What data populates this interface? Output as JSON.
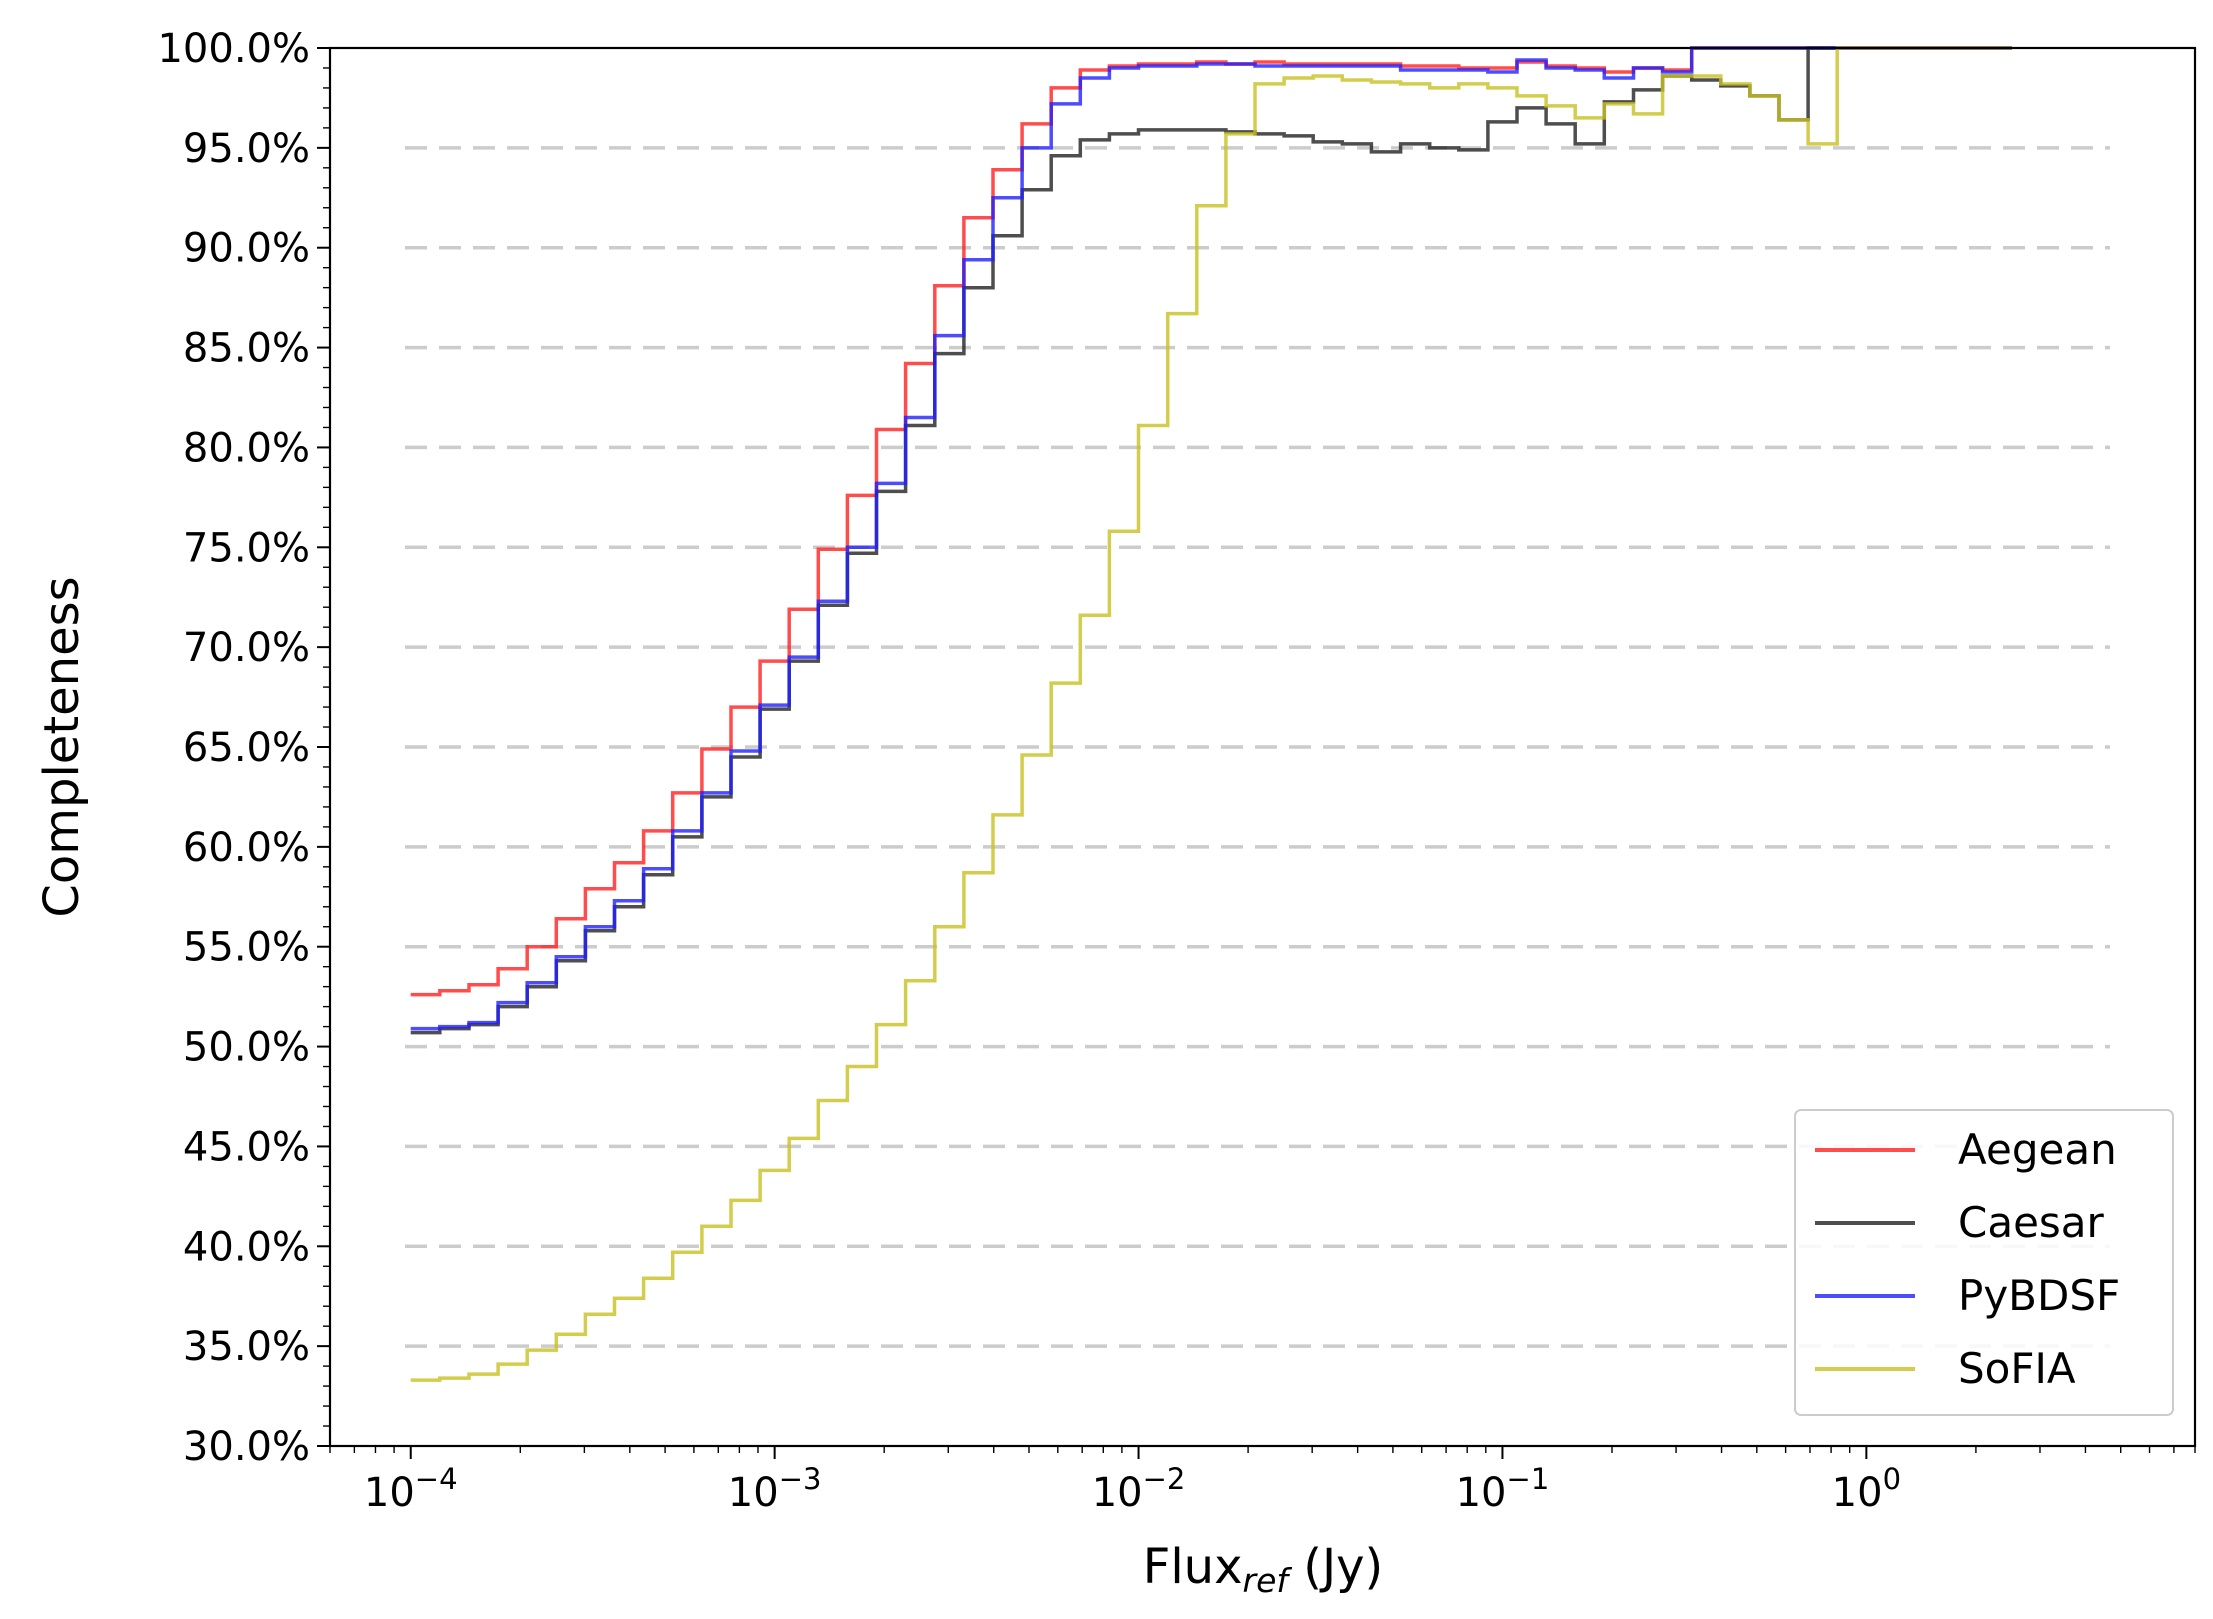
{
  "chart_data": {
    "type": "line",
    "ylabel": "Completeness",
    "xlabel": {
      "main": "Flux",
      "subscript": "ref",
      "unit": " (Jy)"
    },
    "x_scale": "log",
    "xlim": [
      6e-05,
      8.0
    ],
    "ylim": [
      30.0,
      100.0
    ],
    "grid": {
      "axis": "y",
      "style": "dashed"
    },
    "legend_position": "lower-right",
    "y_ticks": [
      "30.0%",
      "35.0%",
      "40.0%",
      "45.0%",
      "50.0%",
      "55.0%",
      "60.0%",
      "65.0%",
      "70.0%",
      "75.0%",
      "80.0%",
      "85.0%",
      "90.0%",
      "95.0%",
      "100.0%"
    ],
    "y_tick_values": [
      30,
      35,
      40,
      45,
      50,
      55,
      60,
      65,
      70,
      75,
      80,
      85,
      90,
      95,
      100
    ],
    "x_ticks": [
      {
        "value": 0.0001,
        "base": "10",
        "exp": "−4"
      },
      {
        "value": 0.001,
        "base": "10",
        "exp": "−3"
      },
      {
        "value": 0.01,
        "base": "10",
        "exp": "−2"
      },
      {
        "value": 0.1,
        "base": "10",
        "exp": "−1"
      },
      {
        "value": 1,
        "base": "10",
        "exp": "0"
      }
    ],
    "bin_edges_log10": [
      -4.0,
      -3.92,
      -3.84,
      -3.76,
      -3.68,
      -3.6,
      -3.52,
      -3.44,
      -3.36,
      -3.28,
      -3.2,
      -3.12,
      -3.04,
      -2.96,
      -2.88,
      -2.8,
      -2.72,
      -2.64,
      -2.56,
      -2.48,
      -2.4,
      -2.32,
      -2.24,
      -2.16,
      -2.08,
      -2.0,
      -1.92,
      -1.84,
      -1.76,
      -1.68,
      -1.6,
      -1.52,
      -1.44,
      -1.36,
      -1.28,
      -1.2,
      -1.12,
      -1.04,
      -0.96,
      -0.88,
      -0.8,
      -0.72,
      -0.64,
      -0.56,
      -0.48,
      -0.4,
      -0.32,
      -0.24,
      -0.16,
      -0.08,
      0.0,
      0.08,
      0.16,
      0.24,
      0.32,
      0.4
    ],
    "series": [
      {
        "name": "Aegean",
        "color": "#ff2020",
        "values": [
          52.6,
          52.8,
          53.1,
          53.9,
          55.0,
          56.4,
          57.9,
          59.2,
          60.8,
          62.7,
          64.9,
          67.0,
          69.3,
          71.9,
          74.9,
          77.6,
          80.9,
          84.2,
          88.1,
          91.5,
          93.9,
          96.2,
          98.0,
          98.9,
          99.1,
          99.2,
          99.2,
          99.3,
          99.2,
          99.3,
          99.2,
          99.2,
          99.2,
          99.2,
          99.1,
          99.1,
          99.0,
          99.0,
          99.3,
          99.1,
          99.0,
          98.8,
          99.0,
          98.9,
          100.0,
          100.0,
          100.0,
          100.0,
          100.0,
          100.0,
          100.0,
          100.0,
          100.0,
          100.0,
          100.0
        ]
      },
      {
        "name": "Caesar",
        "color": "#222222",
        "values": [
          50.7,
          50.9,
          51.1,
          52.0,
          53.0,
          54.3,
          55.8,
          57.0,
          58.6,
          60.5,
          62.5,
          64.5,
          66.9,
          69.3,
          72.1,
          74.7,
          77.8,
          81.1,
          84.7,
          88.0,
          90.6,
          92.9,
          94.6,
          95.4,
          95.7,
          95.9,
          95.9,
          95.9,
          95.8,
          95.7,
          95.6,
          95.3,
          95.2,
          94.8,
          95.2,
          95.0,
          94.9,
          96.3,
          97.0,
          96.2,
          95.2,
          97.3,
          97.9,
          98.6,
          98.4,
          98.1,
          97.6,
          96.4,
          100.0,
          100.0,
          100.0,
          100.0,
          100.0,
          100.0,
          100.0
        ]
      },
      {
        "name": "PyBDSF",
        "color": "#2020ff",
        "values": [
          50.9,
          51.0,
          51.2,
          52.2,
          53.2,
          54.5,
          56.0,
          57.3,
          58.9,
          60.8,
          62.7,
          64.8,
          67.1,
          69.5,
          72.3,
          75.0,
          78.2,
          81.5,
          85.6,
          89.4,
          92.5,
          95.0,
          97.2,
          98.5,
          99.0,
          99.1,
          99.1,
          99.2,
          99.2,
          99.1,
          99.1,
          99.1,
          99.1,
          99.1,
          98.9,
          98.9,
          98.9,
          98.8,
          99.4,
          99.0,
          98.9,
          98.5,
          99.0,
          98.8,
          100.0,
          100.0,
          100.0,
          100.0,
          100.0,
          100.0,
          100.0,
          100.0,
          100.0,
          100.0,
          100.0
        ]
      },
      {
        "name": "SoFIA",
        "color": "#c8c020",
        "values": [
          33.3,
          33.4,
          33.6,
          34.1,
          34.8,
          35.6,
          36.6,
          37.4,
          38.4,
          39.7,
          41.0,
          42.3,
          43.8,
          45.4,
          47.3,
          49.0,
          51.1,
          53.3,
          56.0,
          58.7,
          61.6,
          64.6,
          68.2,
          71.6,
          75.8,
          81.1,
          86.7,
          92.1,
          95.7,
          98.2,
          98.5,
          98.6,
          98.4,
          98.3,
          98.2,
          98.0,
          98.2,
          98.0,
          97.6,
          97.1,
          96.5,
          97.2,
          96.7,
          98.6,
          98.6,
          98.2,
          97.6,
          96.4,
          95.2,
          100.0,
          100.0,
          100.0,
          100.0,
          100.0,
          100.0
        ]
      }
    ]
  }
}
